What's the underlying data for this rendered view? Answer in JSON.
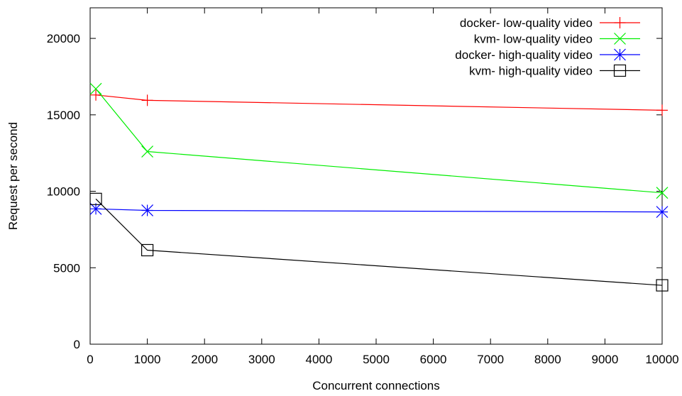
{
  "chart_data": {
    "type": "line",
    "title": "",
    "xlabel": "Concurrent connections",
    "ylabel": "Request per second",
    "xlim": [
      0,
      10000
    ],
    "ylim": [
      0,
      22000
    ],
    "xticks": [
      0,
      1000,
      2000,
      3000,
      4000,
      5000,
      6000,
      7000,
      8000,
      9000,
      10000
    ],
    "yticks": [
      0,
      5000,
      10000,
      15000,
      20000
    ],
    "grid": false,
    "legend_position": "top-right",
    "series": [
      {
        "name": "docker- low-quality video",
        "color": "#ff0000",
        "marker": "plus",
        "x": [
          100,
          1000,
          10000
        ],
        "y": [
          16300,
          15950,
          15300
        ]
      },
      {
        "name": "kvm- low-quality video",
        "color": "#00ee00",
        "marker": "cross",
        "x": [
          100,
          1000,
          10000
        ],
        "y": [
          16700,
          12600,
          9900
        ]
      },
      {
        "name": "docker- high-quality video",
        "color": "#0000ff",
        "marker": "star",
        "x": [
          100,
          1000,
          10000
        ],
        "y": [
          8850,
          8750,
          8650
        ]
      },
      {
        "name": "kvm- high-quality video",
        "color": "#000000",
        "marker": "square",
        "x": [
          100,
          1000,
          10000
        ],
        "y": [
          9500,
          6150,
          3850
        ]
      }
    ]
  }
}
